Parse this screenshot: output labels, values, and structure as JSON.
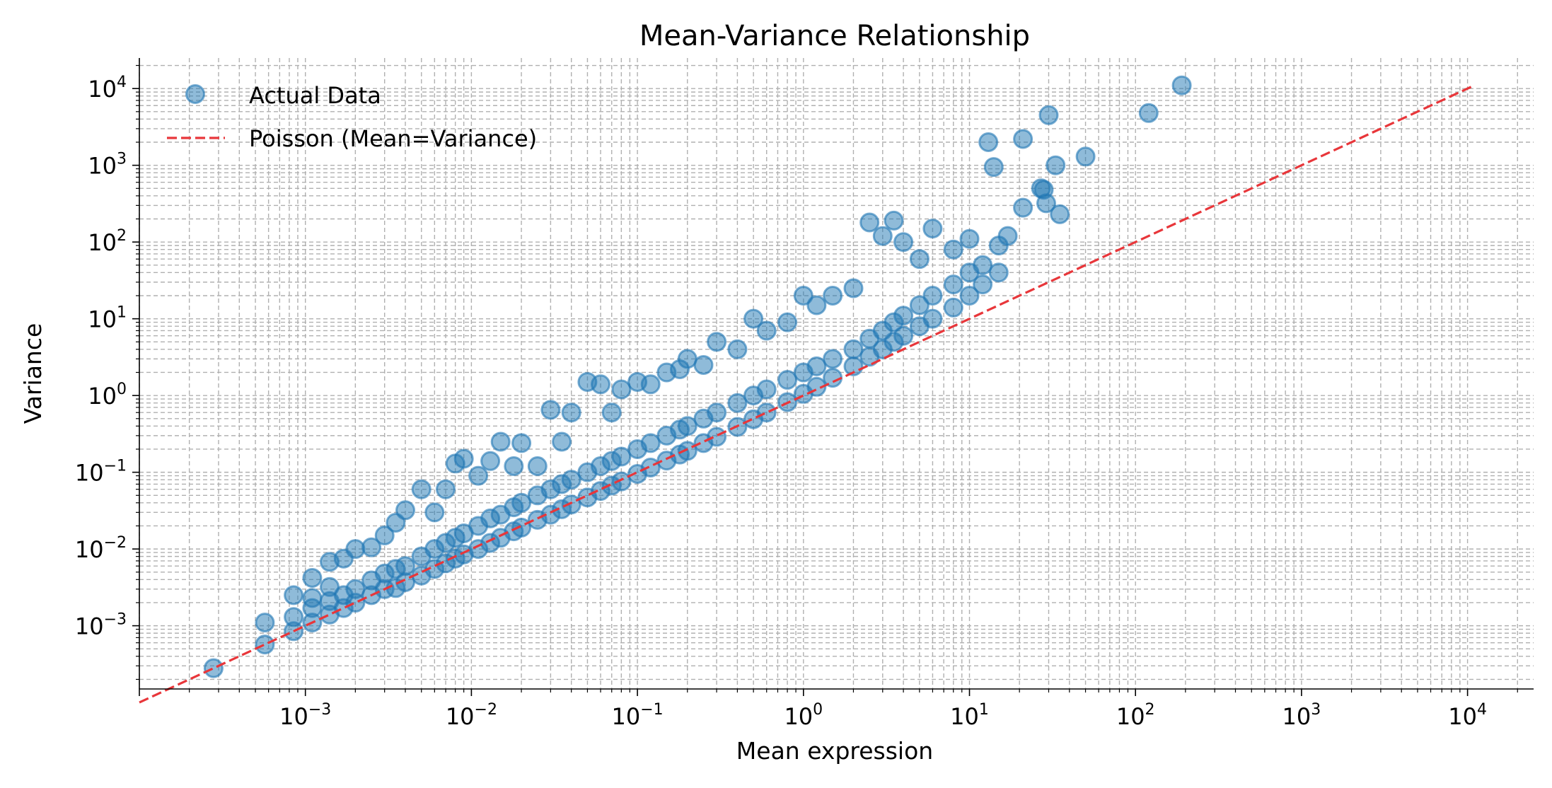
{
  "chart_data": {
    "type": "scatter",
    "title": "Mean-Variance Relationship",
    "xlabel": "Mean expression",
    "ylabel": "Variance",
    "x_scale": "log",
    "y_scale": "log",
    "xlim": [
      0.0001,
      25000
    ],
    "ylim": [
      0.00015,
      25000
    ],
    "x_ticks": [
      0.001,
      0.01,
      0.1,
      1,
      10,
      100,
      1000,
      10000
    ],
    "y_ticks": [
      0.001,
      0.01,
      0.1,
      1,
      10,
      100,
      1000,
      10000
    ],
    "tick_label_base": "10",
    "x_tick_exponents": [
      "−3",
      "−2",
      "−1",
      "0",
      "1",
      "2",
      "3",
      "4"
    ],
    "y_tick_exponents": [
      "−3",
      "−2",
      "−1",
      "0",
      "1",
      "2",
      "3",
      "4"
    ],
    "grid": "both, major and minor, dashed",
    "legend": {
      "placement": "upper-left",
      "entries": [
        {
          "label": "Actual Data",
          "marker": "circle"
        },
        {
          "label": "Poisson (Mean=Variance)",
          "marker": "dashed-line"
        }
      ]
    },
    "series": [
      {
        "name": "Actual Data",
        "kind": "scatter",
        "color": "#1f77b4",
        "alpha": 0.5,
        "points": [
          [
            0.00028,
            0.00028
          ],
          [
            0.00057,
            0.00057
          ],
          [
            0.00057,
            0.0011
          ],
          [
            0.00085,
            0.00085
          ],
          [
            0.00085,
            0.0013
          ],
          [
            0.00085,
            0.0025
          ],
          [
            0.0011,
            0.0011
          ],
          [
            0.0011,
            0.0017
          ],
          [
            0.0011,
            0.0023
          ],
          [
            0.0011,
            0.0042
          ],
          [
            0.0014,
            0.0014
          ],
          [
            0.0014,
            0.0021
          ],
          [
            0.0014,
            0.0032
          ],
          [
            0.0014,
            0.0068
          ],
          [
            0.0017,
            0.0017
          ],
          [
            0.0017,
            0.0025
          ],
          [
            0.0017,
            0.0075
          ],
          [
            0.002,
            0.002
          ],
          [
            0.002,
            0.003
          ],
          [
            0.002,
            0.01
          ],
          [
            0.0025,
            0.0025
          ],
          [
            0.0025,
            0.0039
          ],
          [
            0.0025,
            0.0105
          ],
          [
            0.003,
            0.003
          ],
          [
            0.003,
            0.0048
          ],
          [
            0.003,
            0.015
          ],
          [
            0.0035,
            0.0031
          ],
          [
            0.0035,
            0.0055
          ],
          [
            0.0035,
            0.022
          ],
          [
            0.004,
            0.0037
          ],
          [
            0.004,
            0.006
          ],
          [
            0.004,
            0.032
          ],
          [
            0.005,
            0.0045
          ],
          [
            0.005,
            0.008
          ],
          [
            0.005,
            0.06
          ],
          [
            0.006,
            0.0055
          ],
          [
            0.006,
            0.01
          ],
          [
            0.006,
            0.03
          ],
          [
            0.007,
            0.0065
          ],
          [
            0.007,
            0.012
          ],
          [
            0.007,
            0.06
          ],
          [
            0.008,
            0.0075
          ],
          [
            0.008,
            0.014
          ],
          [
            0.008,
            0.13
          ],
          [
            0.009,
            0.0085
          ],
          [
            0.009,
            0.016
          ],
          [
            0.009,
            0.15
          ],
          [
            0.011,
            0.01
          ],
          [
            0.011,
            0.02
          ],
          [
            0.011,
            0.09
          ],
          [
            0.013,
            0.012
          ],
          [
            0.013,
            0.025
          ],
          [
            0.013,
            0.14
          ],
          [
            0.015,
            0.014
          ],
          [
            0.015,
            0.028
          ],
          [
            0.015,
            0.25
          ],
          [
            0.018,
            0.017
          ],
          [
            0.018,
            0.035
          ],
          [
            0.018,
            0.12
          ],
          [
            0.02,
            0.019
          ],
          [
            0.02,
            0.04
          ],
          [
            0.02,
            0.24
          ],
          [
            0.025,
            0.024
          ],
          [
            0.025,
            0.05
          ],
          [
            0.025,
            0.12
          ],
          [
            0.03,
            0.028
          ],
          [
            0.03,
            0.06
          ],
          [
            0.03,
            0.65
          ],
          [
            0.035,
            0.033
          ],
          [
            0.035,
            0.07
          ],
          [
            0.035,
            0.25
          ],
          [
            0.04,
            0.038
          ],
          [
            0.04,
            0.08
          ],
          [
            0.04,
            0.6
          ],
          [
            0.05,
            0.047
          ],
          [
            0.05,
            0.1
          ],
          [
            0.05,
            1.5
          ],
          [
            0.06,
            0.057
          ],
          [
            0.06,
            0.12
          ],
          [
            0.06,
            1.4
          ],
          [
            0.07,
            0.067
          ],
          [
            0.07,
            0.14
          ],
          [
            0.07,
            0.6
          ],
          [
            0.08,
            0.076
          ],
          [
            0.08,
            0.16
          ],
          [
            0.08,
            1.2
          ],
          [
            0.1,
            0.095
          ],
          [
            0.1,
            0.2
          ],
          [
            0.1,
            1.5
          ],
          [
            0.12,
            0.115
          ],
          [
            0.12,
            0.24
          ],
          [
            0.12,
            1.4
          ],
          [
            0.15,
            0.142
          ],
          [
            0.15,
            0.3
          ],
          [
            0.15,
            2.0
          ],
          [
            0.18,
            0.17
          ],
          [
            0.18,
            0.36
          ],
          [
            0.18,
            2.2
          ],
          [
            0.2,
            0.19
          ],
          [
            0.2,
            0.4
          ],
          [
            0.2,
            3.0
          ],
          [
            0.25,
            0.24
          ],
          [
            0.25,
            0.5
          ],
          [
            0.25,
            2.5
          ],
          [
            0.3,
            0.29
          ],
          [
            0.3,
            0.6
          ],
          [
            0.3,
            5.0
          ],
          [
            0.4,
            0.39
          ],
          [
            0.4,
            0.8
          ],
          [
            0.4,
            4.0
          ],
          [
            0.5,
            0.49
          ],
          [
            0.5,
            1.0
          ],
          [
            0.5,
            10.0
          ],
          [
            0.6,
            0.6
          ],
          [
            0.6,
            1.2
          ],
          [
            0.6,
            7.0
          ],
          [
            0.8,
            0.82
          ],
          [
            0.8,
            1.6
          ],
          [
            0.8,
            9.0
          ],
          [
            1.0,
            1.05
          ],
          [
            1.0,
            2.0
          ],
          [
            1.0,
            20.0
          ],
          [
            1.2,
            1.3
          ],
          [
            1.2,
            2.4
          ],
          [
            1.2,
            15.0
          ],
          [
            1.5,
            1.7
          ],
          [
            1.5,
            3.0
          ],
          [
            1.5,
            20.0
          ],
          [
            2.0,
            2.4
          ],
          [
            2.0,
            4.0
          ],
          [
            2.0,
            25.0
          ],
          [
            2.5,
            3.2
          ],
          [
            2.5,
            5.5
          ],
          [
            2.5,
            180.0
          ],
          [
            3.0,
            4.0
          ],
          [
            3.0,
            7.0
          ],
          [
            3.0,
            120.0
          ],
          [
            3.5,
            5.0
          ],
          [
            3.5,
            9.0
          ],
          [
            3.5,
            190.0
          ],
          [
            4.0,
            6.0
          ],
          [
            4.0,
            11.0
          ],
          [
            4.0,
            100.0
          ],
          [
            5.0,
            8.0
          ],
          [
            5.0,
            15.0
          ],
          [
            5.0,
            60.0
          ],
          [
            6.0,
            10.0
          ],
          [
            6.0,
            20.0
          ],
          [
            6.0,
            150.0
          ],
          [
            8.0,
            14.0
          ],
          [
            8.0,
            28.0
          ],
          [
            8.0,
            80.0
          ],
          [
            10.0,
            20.0
          ],
          [
            10.0,
            40.0
          ],
          [
            10.0,
            110.0
          ],
          [
            12.0,
            28.0
          ],
          [
            12.0,
            50.0
          ],
          [
            13.0,
            2000.0
          ],
          [
            14.0,
            950.0
          ],
          [
            15.0,
            40.0
          ],
          [
            15.0,
            90.0
          ],
          [
            17.0,
            120.0
          ],
          [
            21.0,
            2200.0
          ],
          [
            21.0,
            280.0
          ],
          [
            27.0,
            500.0
          ],
          [
            28.0,
            480.0
          ],
          [
            29.0,
            320.0
          ],
          [
            30.0,
            4500.0
          ],
          [
            33.0,
            1000.0
          ],
          [
            35.0,
            230.0
          ],
          [
            50.0,
            1300.0
          ],
          [
            120.0,
            4800.0
          ],
          [
            190.0,
            11000.0
          ]
        ]
      },
      {
        "name": "Poisson (Mean=Variance)",
        "kind": "line",
        "color": "#e8363a",
        "style": "dashed",
        "x": [
          0.0001,
          11000
        ],
        "y": [
          0.0001,
          11000
        ]
      }
    ]
  }
}
